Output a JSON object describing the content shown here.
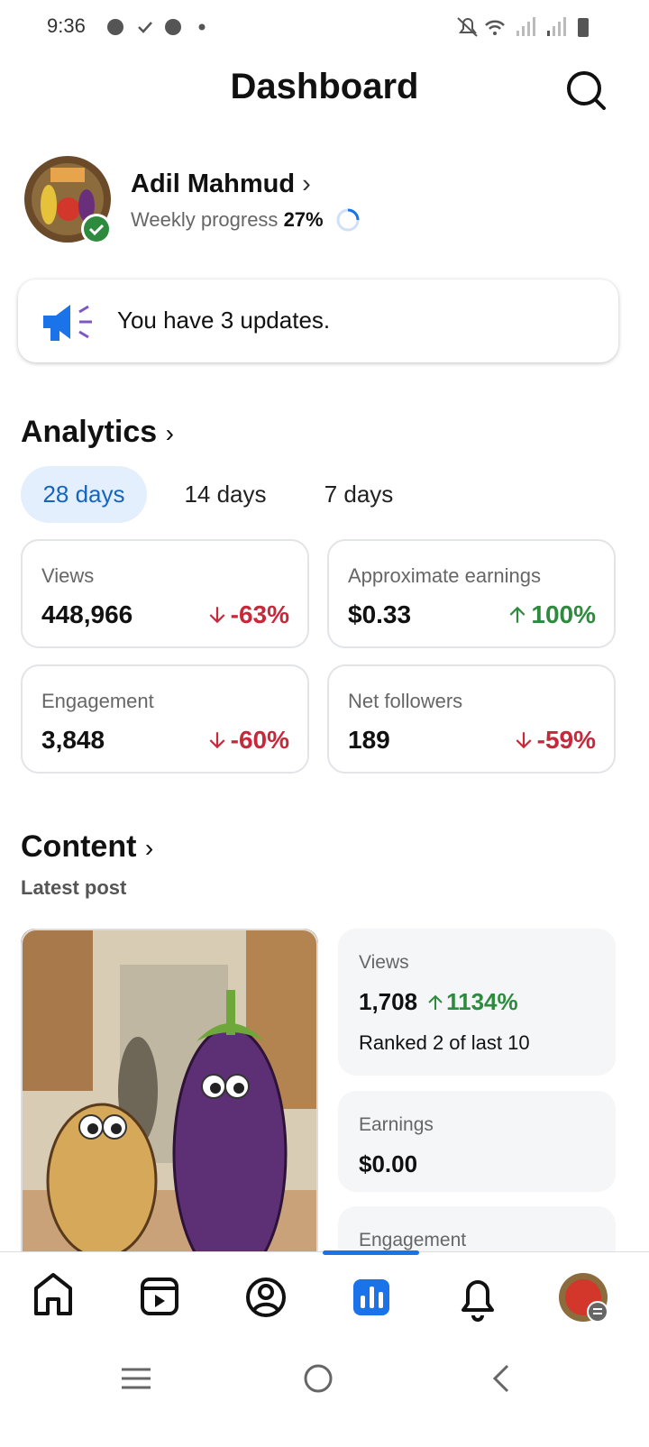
{
  "status_bar": {
    "time": "9:36"
  },
  "header": {
    "title": "Dashboard"
  },
  "profile": {
    "name": "Adil Mahmud",
    "progress_label": "Weekly progress",
    "progress_value": "27%"
  },
  "notice": {
    "text": "You have 3 updates."
  },
  "analytics": {
    "title": "Analytics",
    "tabs": [
      "28 days",
      "14 days",
      "7 days"
    ],
    "cards": [
      {
        "label": "Views",
        "value": "448,966",
        "change": "-63%",
        "direction": "down"
      },
      {
        "label": "Approximate earnings",
        "value": "$0.33",
        "change": "100%",
        "direction": "up"
      },
      {
        "label": "Engagement",
        "value": "3,848",
        "change": "-60%",
        "direction": "down"
      },
      {
        "label": "Net followers",
        "value": "189",
        "change": "-59%",
        "direction": "down"
      }
    ]
  },
  "content": {
    "title": "Content",
    "subtitle": "Latest post",
    "stats": [
      {
        "label": "Views",
        "value": "1,708",
        "change": "1134%",
        "direction": "up",
        "note": "Ranked 2 of last 10"
      },
      {
        "label": "Earnings",
        "value": "$0.00"
      },
      {
        "label": "Engagement"
      }
    ]
  }
}
